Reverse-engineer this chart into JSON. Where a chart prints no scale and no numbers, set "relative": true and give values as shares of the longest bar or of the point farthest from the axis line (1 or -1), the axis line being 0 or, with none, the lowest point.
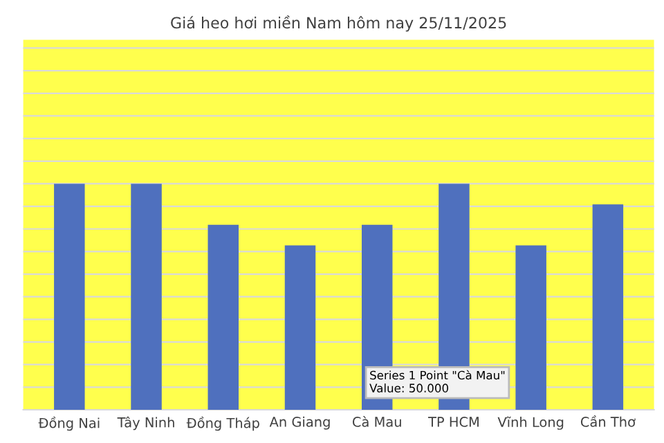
{
  "chart_data": {
    "type": "bar",
    "title": "Giá heo hơi miền Nam hôm nay 25/11/2025",
    "categories": [
      "Đồng Nai",
      "Tây Ninh",
      "Đồng Tháp",
      "An Giang",
      "Cà Mau",
      "TP HCM",
      "Vĩnh Long",
      "Cần Thơ"
    ],
    "values": [
      1,
      1,
      0.818,
      0.727,
      0.818,
      1,
      0.727,
      0.909
    ],
    "color": "#4f70be",
    "relative": true,
    "grid": "y",
    "legend": false,
    "annotations": [
      "Series 1 Point \"Cà Mau\"\nValue: 50.000"
    ]
  }
}
